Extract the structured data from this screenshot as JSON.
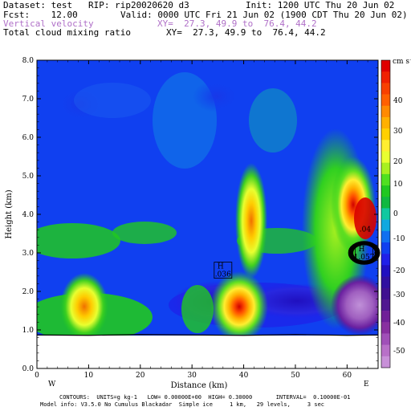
{
  "header": {
    "dataset": "Dataset: test   RIP: rip20020620 d3",
    "init": "Init: 1200 UTC Thu 20 Jun 02",
    "fcst": "Fcst:    12.00",
    "valid": "Valid: 0000 UTC Fri 21 Jun 02 (1900 CDT Thu 20 Jun 02)",
    "field1": "Vertical velocity",
    "xy1": "XY=  27.3, 49.9 to  76.4, 44.2",
    "field2": "Total cloud mixing ratio",
    "xy2": "XY=  27.3, 49.9 to  76.4, 44.2"
  },
  "chart_data": {
    "type": "heatmap",
    "xlabel": "Distance (km)",
    "ylabel": "Height (km)",
    "xlim": [
      0,
      66
    ],
    "ylim": [
      0,
      8
    ],
    "x_ticks": [
      "0",
      "10",
      "20",
      "30",
      "40",
      "50",
      "60"
    ],
    "y_ticks": [
      "0.0",
      "1.0",
      "2.0",
      "3.0",
      "4.0",
      "5.0",
      "6.0",
      "7.0",
      "8.0"
    ],
    "x_endpoints": [
      "W",
      "E"
    ],
    "colorbar": {
      "unit": "cm s⁻¹",
      "labels": [
        "40",
        "30",
        "20",
        "10",
        "0",
        "-10",
        "-20",
        "-30",
        "-40",
        "-50"
      ],
      "colors": [
        "#e00000",
        "#f02000",
        "#f84000",
        "#ff6000",
        "#ff8a00",
        "#ffb000",
        "#ffd000",
        "#ffee30",
        "#e8ff30",
        "#a8f020",
        "#50e020",
        "#20c820",
        "#10b840",
        "#10c8a0",
        "#10a8e0",
        "#1070f0",
        "#1040f0",
        "#2020e8",
        "#2010c0",
        "#3010a0",
        "#401090",
        "#501890",
        "#702098",
        "#8830a0",
        "#a050b8",
        "#b870c8",
        "#c890d8"
      ]
    },
    "extrema": [
      {
        "letter": "H",
        "value": ".036",
        "x": 36,
        "y": 2.55
      },
      {
        "letter": "H",
        "value": "1.057",
        "x": 63.3,
        "y": 3.0
      },
      {
        "letter": "",
        "value": ".04",
        "x": 63.5,
        "y": 3.55
      }
    ],
    "footer1": "CONTOURS:  UNITS=g kg-1   LOW= 0.00000E+00  HIGH= 0.30000       INTERVAL=  0.10000E-01",
    "footer2": "Model info: V3.5.0 No Cumulus Blackadar  Simple ice     1 km,   29 levels,     3 sec"
  }
}
